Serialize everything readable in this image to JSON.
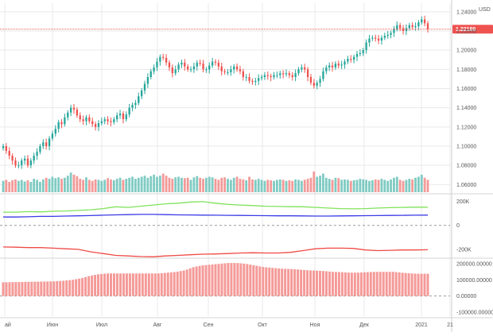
{
  "currency": "USD",
  "colors": {
    "up": "#26a69a",
    "down": "#ef5350",
    "volume_up": "#7fcbc3",
    "volume_down": "#f29a98",
    "price_line": "#ef5350",
    "green_line": "#7fe25a",
    "blue_line": "#3a3ae6",
    "red_line": "#ef4a45",
    "hist": "#f49a98",
    "grid": "#e9e9e9",
    "zero_line": "#9a9a9a"
  },
  "chart_data": [
    {
      "type": "candlestick",
      "name": "price",
      "y_ticks": [
        "1.24000",
        "1.22000",
        "1.20000",
        "1.18000",
        "1.16000",
        "1.14000",
        "1.12000",
        "1.10000",
        "1.08000",
        "1.06000"
      ],
      "ylim": [
        1.052,
        1.244
      ],
      "last_price": 1.22189,
      "last_price_label": "1.22189",
      "closes": [
        1.1,
        1.095,
        1.09,
        1.085,
        1.08,
        1.08,
        1.085,
        1.087,
        1.08,
        1.085,
        1.09,
        1.094,
        1.1,
        1.104,
        1.1,
        1.108,
        1.113,
        1.118,
        1.125,
        1.123,
        1.13,
        1.135,
        1.14,
        1.138,
        1.132,
        1.128,
        1.126,
        1.13,
        1.126,
        1.123,
        1.12,
        1.124,
        1.126,
        1.128,
        1.126,
        1.125,
        1.128,
        1.132,
        1.134,
        1.128,
        1.133,
        1.14,
        1.143,
        1.145,
        1.152,
        1.158,
        1.165,
        1.172,
        1.178,
        1.182,
        1.188,
        1.193,
        1.192,
        1.187,
        1.182,
        1.176,
        1.18,
        1.185,
        1.187,
        1.183,
        1.18,
        1.18,
        1.183,
        1.187,
        1.186,
        1.18,
        1.18,
        1.184,
        1.188,
        1.187,
        1.183,
        1.178,
        1.177,
        1.177,
        1.18,
        1.183,
        1.18,
        1.178,
        1.172,
        1.172,
        1.168,
        1.167,
        1.168,
        1.171,
        1.172,
        1.174,
        1.173,
        1.172,
        1.174,
        1.174,
        1.176,
        1.175,
        1.176,
        1.174,
        1.172,
        1.176,
        1.18,
        1.182,
        1.18,
        1.172,
        1.166,
        1.163,
        1.166,
        1.17,
        1.178,
        1.182,
        1.184,
        1.182,
        1.186,
        1.184,
        1.185,
        1.188,
        1.191,
        1.19,
        1.193,
        1.196,
        1.197,
        1.2,
        1.208,
        1.212,
        1.213,
        1.212,
        1.21,
        1.213,
        1.215,
        1.216,
        1.218,
        1.222,
        1.226,
        1.223,
        1.22,
        1.223,
        1.226,
        1.224,
        1.225,
        1.229,
        1.232,
        1.228,
        1.222
      ]
    },
    {
      "type": "bar",
      "name": "volume",
      "values": [
        0.55,
        0.6,
        0.5,
        0.58,
        0.62,
        0.55,
        0.6,
        0.52,
        0.58,
        0.5,
        0.65,
        0.6,
        0.5,
        0.62,
        0.7,
        0.65,
        0.75,
        0.68,
        0.72,
        0.65,
        0.7,
        0.8,
        0.95,
        0.85,
        0.78,
        0.65,
        0.6,
        0.72,
        0.6,
        0.55,
        0.62,
        0.6,
        0.55,
        0.6,
        0.68,
        0.62,
        0.58,
        0.65,
        0.7,
        0.6,
        0.65,
        0.7,
        0.75,
        0.65,
        0.7,
        0.75,
        0.8,
        0.7,
        0.78,
        0.85,
        0.75,
        0.8,
        0.9,
        0.8,
        0.7,
        0.65,
        0.72,
        0.75,
        0.7,
        0.68,
        0.7,
        0.6,
        0.72,
        0.78,
        0.7,
        0.65,
        0.7,
        0.75,
        0.72,
        0.65,
        0.6,
        0.7,
        0.72,
        0.65,
        0.6,
        0.7,
        0.75,
        0.65,
        0.62,
        0.58,
        0.75,
        0.62,
        0.6,
        0.65,
        0.6,
        0.55,
        0.6,
        0.58,
        0.55,
        0.6,
        0.62,
        0.6,
        0.55,
        0.58,
        0.55,
        0.62,
        0.6,
        0.55,
        0.6,
        0.65,
        0.7,
        1.0,
        0.75,
        0.8,
        0.9,
        0.7,
        0.65,
        0.6,
        0.7,
        0.68,
        0.6,
        0.62,
        0.6,
        0.55,
        0.58,
        0.6,
        0.65,
        0.62,
        0.6,
        0.55,
        0.58,
        0.62,
        0.6,
        0.65,
        0.6,
        0.55,
        0.62,
        0.7,
        0.75,
        0.6,
        0.55,
        0.6,
        0.65,
        0.62,
        0.7,
        0.75,
        0.85,
        0.7,
        0.6
      ]
    },
    {
      "type": "line",
      "name": "oscillator",
      "y_ticks": [
        "200K",
        "0",
        "-200K"
      ],
      "ylim": [
        -260000,
        250000
      ],
      "series": [
        {
          "color_key": "green_line",
          "values": [
            110000,
            110000,
            115000,
            112000,
            118000,
            120000,
            125000,
            130000,
            140000,
            155000,
            150000,
            160000,
            170000,
            180000,
            185000,
            195000,
            198000,
            185000,
            175000,
            170000,
            165000,
            160000,
            158000,
            156000,
            155000,
            150000,
            145000,
            140000,
            138000,
            140000,
            145000,
            148000,
            150000,
            152000,
            152000
          ]
        },
        {
          "color_key": "blue_line",
          "values": [
            70000,
            70000,
            72000,
            75000,
            75000,
            78000,
            80000,
            82000,
            85000,
            88000,
            90000,
            92000,
            92000,
            90000,
            88000,
            87000,
            86000,
            85000,
            84000,
            83000,
            82000,
            81000,
            80000,
            80000,
            79000,
            78000,
            78000,
            79000,
            80000,
            81000,
            82000,
            83000,
            84000,
            85000,
            86000
          ]
        },
        {
          "color_key": "red_line",
          "values": [
            -180000,
            -182000,
            -185000,
            -185000,
            -190000,
            -195000,
            -200000,
            -220000,
            -235000,
            -250000,
            -255000,
            -260000,
            -262000,
            -255000,
            -250000,
            -245000,
            -240000,
            -238000,
            -235000,
            -230000,
            -228000,
            -230000,
            -230000,
            -225000,
            -210000,
            -195000,
            -190000,
            -190000,
            -192000,
            -205000,
            -210000,
            -208000,
            -205000,
            -205000,
            -203000
          ]
        }
      ]
    },
    {
      "type": "bar",
      "name": "histogram",
      "y_ticks": [
        "200000.00000",
        "100000.00000",
        "0.00000",
        "-100000.00000"
      ],
      "ylim": [
        -125000,
        225000
      ],
      "values": [
        85000,
        86000,
        87000,
        88000,
        89000,
        90000,
        91000,
        95000,
        100000,
        110000,
        125000,
        135000,
        140000,
        140000,
        140000,
        140000,
        140000,
        140000,
        140000,
        145000,
        150000,
        160000,
        180000,
        190000,
        195000,
        200000,
        205000,
        205000,
        200000,
        190000,
        180000,
        175000,
        170000,
        168000,
        165000,
        160000,
        158000,
        155000,
        150000,
        148000,
        145000,
        145000,
        148000,
        150000,
        150000,
        150000,
        145000,
        140000,
        138000,
        138000
      ]
    }
  ],
  "x_axis": {
    "labels": [
      "ай",
      "Июн",
      "Июл",
      "Авг",
      "Сен",
      "Окт",
      "Ноя",
      "Дек",
      "2021",
      "21"
    ]
  }
}
